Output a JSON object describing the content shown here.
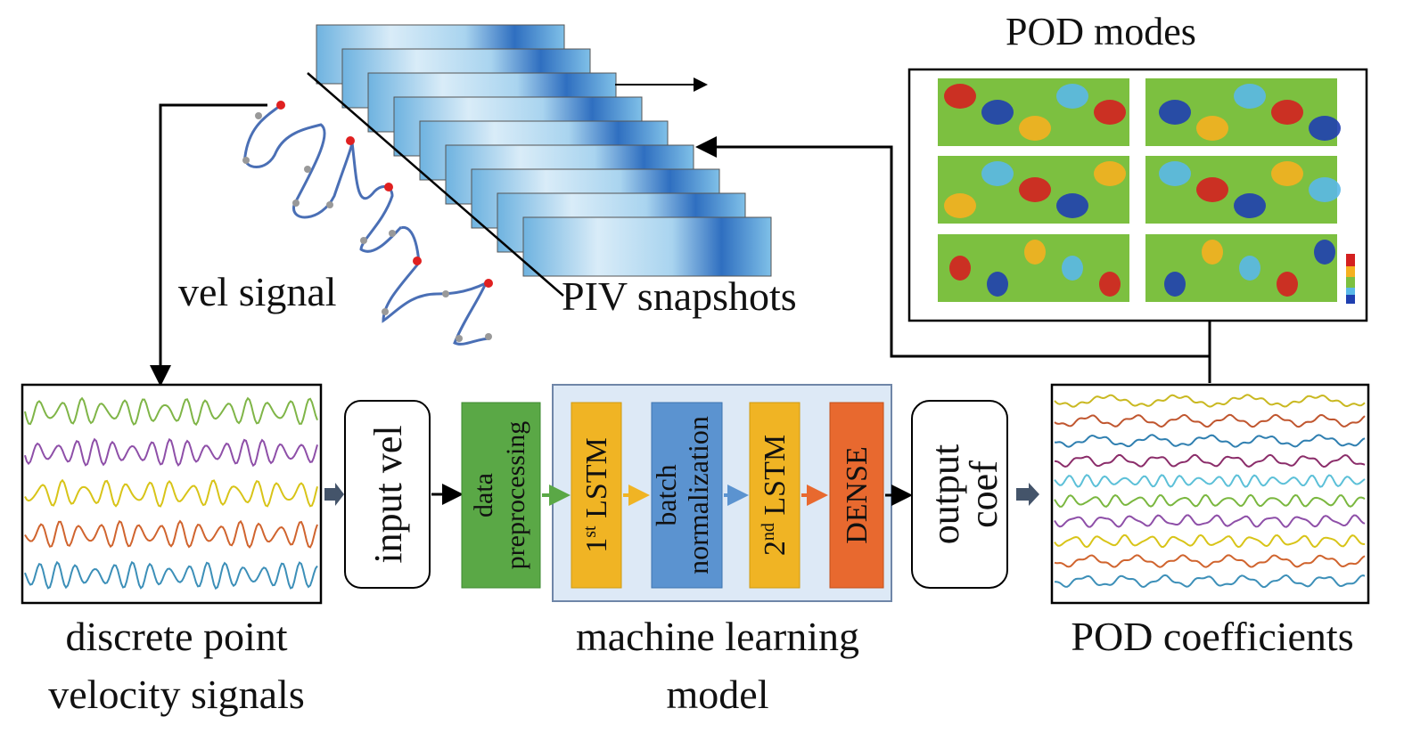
{
  "labels": {
    "pod_modes": "POD modes",
    "vel_signal": "vel signal",
    "piv_snapshots": "PIV snapshots",
    "discrete_line1": "discrete point",
    "discrete_line2": "velocity signals",
    "ml_line1": "machine learning",
    "ml_line2": "model",
    "pod_coefficients": "POD coefficients"
  },
  "pipeline": {
    "input": "input vel",
    "preprocessing_line1": "data",
    "preprocessing_line2": "preprocessing",
    "lstm1_num": "1",
    "lstm1_sup": "st",
    "lstm1_text": " LSTM",
    "batch_line1": "batch",
    "batch_line2": "normalization",
    "lstm2_num": "2",
    "lstm2_sup": "nd",
    "lstm2_text": " LSTM",
    "dense": "DENSE",
    "output_line1": "output",
    "output_line2": "coef"
  },
  "colors": {
    "preprocessing": "#5aa846",
    "lstm": "#f0b424",
    "batch": "#5b93d0",
    "dense": "#e8692f",
    "ml_container": "#dde9f6",
    "velocity_waves": [
      "#7fb547",
      "#8e4fa8",
      "#d8c418",
      "#d0642e",
      "#3c8fb8"
    ],
    "pod_waves": [
      "#c9b820",
      "#c0562f",
      "#2f7fb0",
      "#8b2d6a",
      "#5cc0d8",
      "#7ab73f",
      "#8e4fa8",
      "#d8c418",
      "#d0642e",
      "#3c8fb8"
    ]
  }
}
